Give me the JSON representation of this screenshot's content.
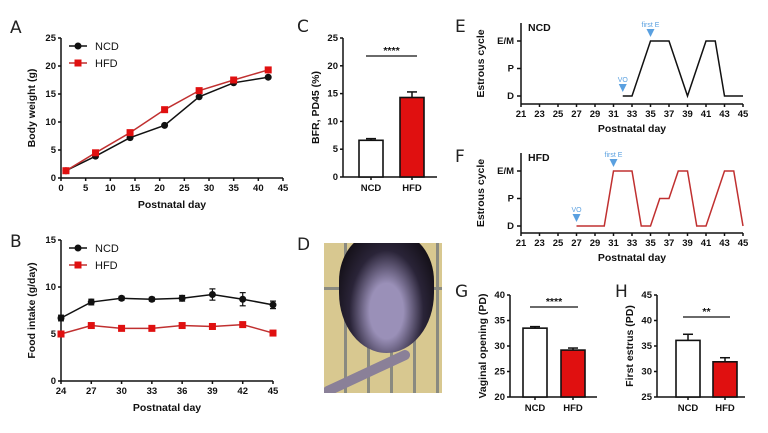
{
  "panel_letters": [
    "A",
    "B",
    "C",
    "D",
    "E",
    "F",
    "G",
    "H"
  ],
  "colors": {
    "NCD": "#111111",
    "HFD": "#e01010",
    "hfd_line": "#c03030",
    "marker": "#5aa0e0"
  },
  "photo": {
    "description_icon": "mouse-photo"
  },
  "chart_data": [
    {
      "id": "A",
      "type": "line",
      "xlabel": "Postnatal day",
      "ylabel": "Body weight (g)",
      "xlim": [
        0,
        45
      ],
      "ylim": [
        0,
        25
      ],
      "xticks": [
        0,
        5,
        10,
        15,
        20,
        25,
        30,
        35,
        40,
        45
      ],
      "yticks": [
        0,
        5,
        10,
        15,
        20,
        25
      ],
      "legend": "top-left",
      "x": [
        1,
        7,
        14,
        21,
        28,
        35,
        42
      ],
      "series": [
        {
          "name": "NCD",
          "values": [
            1.3,
            3.9,
            7.2,
            9.4,
            14.5,
            17.0,
            18.0
          ]
        },
        {
          "name": "HFD",
          "values": [
            1.3,
            4.5,
            8.1,
            12.2,
            15.6,
            17.5,
            19.3
          ]
        }
      ]
    },
    {
      "id": "B",
      "type": "line",
      "xlabel": "Postnatal day",
      "ylabel": "Food intake (g/day)",
      "xlim": [
        24,
        45
      ],
      "ylim": [
        0,
        15
      ],
      "xticks": [
        24,
        27,
        30,
        33,
        36,
        39,
        42,
        45
      ],
      "yticks": [
        0,
        5,
        10,
        15
      ],
      "legend": "top-left",
      "x": [
        24,
        27,
        30,
        33,
        36,
        39,
        42,
        45
      ],
      "series": [
        {
          "name": "NCD",
          "values": [
            6.7,
            8.4,
            8.8,
            8.7,
            8.8,
            9.2,
            8.7,
            8.1
          ],
          "errors": [
            0.3,
            0.3,
            0.2,
            0.2,
            0.3,
            0.6,
            0.7,
            0.4
          ]
        },
        {
          "name": "HFD",
          "values": [
            5.0,
            5.9,
            5.6,
            5.6,
            5.9,
            5.8,
            6.0,
            5.1
          ],
          "errors": [
            0.1,
            0.1,
            0.1,
            0.1,
            0.1,
            0.1,
            0.1,
            0.1
          ]
        }
      ]
    },
    {
      "id": "C",
      "type": "bar",
      "ylabel": "BFR, PD45 (%)",
      "ylim": [
        0,
        25
      ],
      "yticks": [
        0,
        5,
        10,
        15,
        20,
        25
      ],
      "categories": [
        "NCD",
        "HFD"
      ],
      "values": [
        6.6,
        14.3
      ],
      "errors": [
        0.3,
        1.0
      ],
      "significance": "****"
    },
    {
      "id": "E",
      "type": "line",
      "title": "NCD",
      "xlabel": "Postnatal day",
      "ylabel": "Estrous cycle",
      "xlim": [
        21,
        45
      ],
      "xticks": [
        21,
        23,
        25,
        27,
        29,
        31,
        33,
        35,
        37,
        39,
        41,
        43,
        45
      ],
      "ycategories": [
        "D",
        "P",
        "E/M"
      ],
      "x": [
        32,
        33,
        35,
        37,
        39,
        41,
        42,
        43,
        45
      ],
      "values": [
        "D",
        "D",
        "E/M",
        "E/M",
        "D",
        "E/M",
        "E/M",
        "D",
        "D"
      ],
      "annotations": [
        {
          "label": "VO",
          "x": 32
        },
        {
          "label": "first E",
          "x": 35
        }
      ]
    },
    {
      "id": "F",
      "type": "line",
      "title": "HFD",
      "xlabel": "Postnatal day",
      "ylabel": "Estrous cycle",
      "xlim": [
        21,
        45
      ],
      "xticks": [
        21,
        23,
        25,
        27,
        29,
        31,
        33,
        35,
        37,
        39,
        41,
        43,
        45
      ],
      "ycategories": [
        "D",
        "P",
        "E/M"
      ],
      "x": [
        27,
        30,
        31,
        33,
        34,
        35,
        36,
        37,
        38,
        39,
        40,
        41,
        43,
        44,
        45
      ],
      "values": [
        "D",
        "D",
        "E/M",
        "E/M",
        "D",
        "D",
        "P",
        "P",
        "E/M",
        "E/M",
        "D",
        "D",
        "E/M",
        "E/M",
        "D"
      ],
      "annotations": [
        {
          "label": "VO",
          "x": 27
        },
        {
          "label": "first E",
          "x": 31
        }
      ]
    },
    {
      "id": "G",
      "type": "bar",
      "ylabel": "Vaginal opening (PD)",
      "ylim": [
        20,
        40
      ],
      "yticks": [
        20,
        25,
        30,
        35,
        40
      ],
      "categories": [
        "NCD",
        "HFD"
      ],
      "values": [
        33.5,
        29.2
      ],
      "errors": [
        0.3,
        0.4
      ],
      "significance": "****"
    },
    {
      "id": "H",
      "type": "bar",
      "ylabel": "First estrus (PD)",
      "ylim": [
        25,
        45
      ],
      "yticks": [
        25,
        30,
        35,
        40,
        45
      ],
      "categories": [
        "NCD",
        "HFD"
      ],
      "values": [
        36.1,
        31.9
      ],
      "errors": [
        1.2,
        0.8
      ],
      "significance": "**"
    }
  ]
}
